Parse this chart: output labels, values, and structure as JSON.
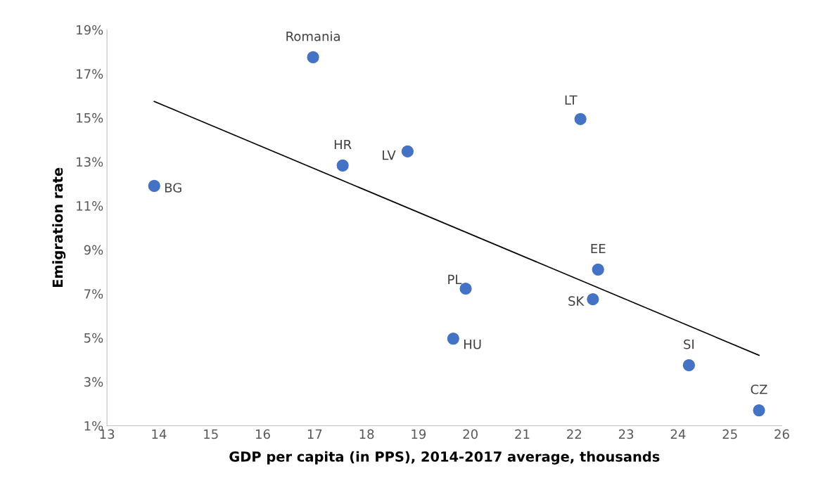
{
  "chart_data": {
    "type": "scatter",
    "xlabel": "GDP per capita (in PPS), 2014-2017 average, thousands",
    "ylabel": "Emigration rate",
    "series": [
      {
        "marker": "circle",
        "color": "#4472c4",
        "x": [
          13.91,
          16.97,
          17.54,
          18.79,
          22.12,
          22.46,
          19.91,
          22.36,
          19.67,
          24.21,
          25.56
        ],
        "values": [
          11.9,
          17.75,
          12.83,
          13.47,
          14.94,
          8.1,
          7.23,
          6.75,
          4.96,
          3.75,
          1.7
        ]
      },
      {
        "type": "line",
        "marker": "none",
        "color": "#000000",
        "x": [
          13.91,
          25.56
        ],
        "values": [
          15.74,
          4.2
        ]
      }
    ],
    "annotations": [
      {
        "text": "BG",
        "x": 13.91,
        "y": 11.9
      },
      {
        "text": "Romania",
        "x": 16.97,
        "y": 17.75
      },
      {
        "text": "HR",
        "x": 17.54,
        "y": 12.83
      },
      {
        "text": "LV",
        "x": 18.79,
        "y": 13.47
      },
      {
        "text": "LT",
        "x": 22.12,
        "y": 14.94
      },
      {
        "text": "EE",
        "x": 22.46,
        "y": 8.1
      },
      {
        "text": "PL",
        "x": 19.91,
        "y": 7.23
      },
      {
        "text": "SK",
        "x": 22.36,
        "y": 6.75
      },
      {
        "text": "HU",
        "x": 19.67,
        "y": 4.96
      },
      {
        "text": "SI",
        "x": 24.21,
        "y": 3.75
      },
      {
        "text": "CZ",
        "x": 25.56,
        "y": 1.7
      }
    ],
    "xlim": [
      13,
      26
    ],
    "xticks": [
      13,
      14,
      15,
      16,
      17,
      18,
      19,
      20,
      21,
      22,
      23,
      24,
      25,
      26
    ],
    "ylim": [
      1,
      19
    ],
    "yticks": [
      {
        "value": 1,
        "label": "1%"
      },
      {
        "value": 3,
        "label": "3%"
      },
      {
        "value": 5,
        "label": "5%"
      },
      {
        "value": 7,
        "label": "7%"
      },
      {
        "value": 9,
        "label": "9%"
      },
      {
        "value": 11,
        "label": "11%"
      },
      {
        "value": 13,
        "label": "13%"
      },
      {
        "value": 15,
        "label": "15%"
      },
      {
        "value": 17,
        "label": "17%"
      },
      {
        "value": 19,
        "label": "19%"
      }
    ],
    "grid": false,
    "legend": false
  }
}
